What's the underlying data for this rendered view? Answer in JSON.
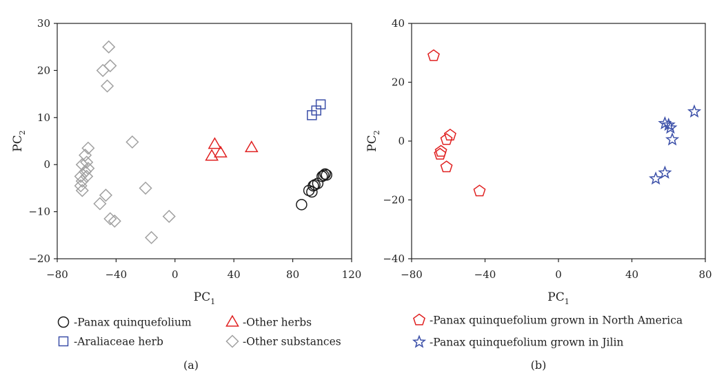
{
  "chart_data": [
    {
      "type": "scatter",
      "panel_label": "(a)",
      "xlabel": "PC",
      "xlabel_sub": "1",
      "ylabel": "PC",
      "ylabel_sub": "2",
      "xlim": [
        -80,
        120
      ],
      "ylim": [
        -20,
        30
      ],
      "xticks": [
        -80,
        -40,
        0,
        40,
        80,
        120
      ],
      "yticks": [
        -20,
        -10,
        0,
        10,
        20,
        30
      ],
      "xtick_labels": [
        "−80",
        "−40",
        "0",
        "40",
        "80",
        "120"
      ],
      "ytick_labels": [
        "−20",
        "−10",
        "0",
        "10",
        "20",
        "30"
      ],
      "grid": false,
      "legend_position": "below",
      "series": [
        {
          "name": "-Panax quinquefolium",
          "marker": "circle",
          "color": "#1a1a1a",
          "points": [
            [
              86,
              -8.5
            ],
            [
              91,
              -5.5
            ],
            [
              93,
              -5.8
            ],
            [
              94,
              -4.5
            ],
            [
              95,
              -4.3
            ],
            [
              97,
              -4.0
            ],
            [
              100,
              -2.5
            ],
            [
              101,
              -2.3
            ],
            [
              102,
              -2.0
            ],
            [
              103,
              -2.2
            ]
          ]
        },
        {
          "name": "-Araliaceae herb",
          "marker": "square",
          "color": "#3b4fa8",
          "points": [
            [
              93,
              10.5
            ],
            [
              96,
              11.5
            ],
            [
              99,
              12.8
            ]
          ]
        },
        {
          "name": "-Other herbs",
          "marker": "triangle",
          "color": "#e02020",
          "points": [
            [
              25,
              1.8
            ],
            [
              27,
              4.3
            ],
            [
              31,
              2.5
            ],
            [
              52,
              3.6
            ]
          ]
        },
        {
          "name": "-Other substances",
          "marker": "diamond",
          "color": "#a0a0a0",
          "points": [
            [
              -45,
              25
            ],
            [
              -44,
              21
            ],
            [
              -49,
              20
            ],
            [
              -46,
              16.7
            ],
            [
              -29,
              4.8
            ],
            [
              -59,
              3.5
            ],
            [
              -61,
              2
            ],
            [
              -60,
              0.5
            ],
            [
              -63,
              0
            ],
            [
              -59,
              -0.8
            ],
            [
              -61,
              -1.5
            ],
            [
              -64,
              -2.5
            ],
            [
              -60,
              -2.5
            ],
            [
              -63,
              -3.5
            ],
            [
              -64,
              -4.5
            ],
            [
              -63,
              -5.5
            ],
            [
              -20,
              -5
            ],
            [
              -47,
              -6.5
            ],
            [
              -51,
              -8.3
            ],
            [
              -44,
              -11.5
            ],
            [
              -41,
              -12
            ],
            [
              -4,
              -11
            ],
            [
              -16,
              -15.5
            ]
          ]
        }
      ]
    },
    {
      "type": "scatter",
      "panel_label": "(b)",
      "xlabel": "PC",
      "xlabel_sub": "1",
      "ylabel": "PC",
      "ylabel_sub": "2",
      "xlim": [
        -80,
        80
      ],
      "ylim": [
        -40,
        40
      ],
      "xticks": [
        -80,
        -40,
        0,
        40,
        80
      ],
      "yticks": [
        -40,
        -20,
        0,
        20,
        40
      ],
      "xtick_labels": [
        "−80",
        "−40",
        "0",
        "40",
        "80"
      ],
      "ytick_labels": [
        "−40",
        "−20",
        "0",
        "20",
        "40"
      ],
      "grid": false,
      "legend_position": "below",
      "series": [
        {
          "name": "-Panax quinquefolium grown in North America",
          "marker": "pentagon",
          "color": "#e02020",
          "points": [
            [
              -68,
              29
            ],
            [
              -59,
              2
            ],
            [
              -61,
              0.5
            ],
            [
              -64,
              -3.5
            ],
            [
              -64.5,
              -4.5
            ],
            [
              -61,
              -8.8
            ],
            [
              -43,
              -17
            ]
          ]
        },
        {
          "name": "-Panax quinquefolium grown in Jilin",
          "marker": "star",
          "color": "#3b4fa8",
          "points": [
            [
              74,
              10
            ],
            [
              58,
              6
            ],
            [
              60,
              5.5
            ],
            [
              61,
              4.5
            ],
            [
              62,
              0.5
            ],
            [
              58,
              -10.8
            ],
            [
              53,
              -12.8
            ]
          ]
        }
      ]
    }
  ]
}
